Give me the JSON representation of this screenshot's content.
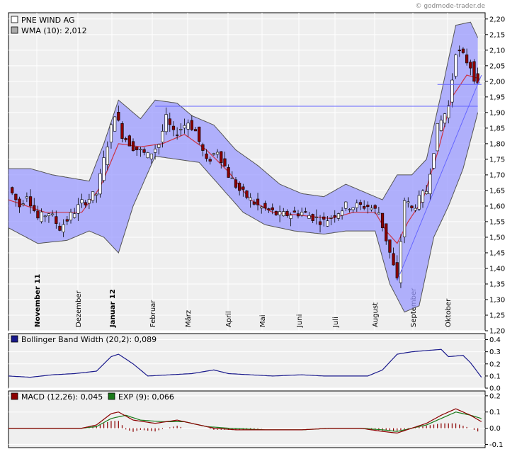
{
  "watermark": "© godmode-trader.de",
  "chart_data": [
    {
      "type": "candlestick",
      "legend": [
        {
          "label": "PNE WIND AG",
          "color": "#ffffff"
        },
        {
          "label": "WMA (10): 2,012",
          "color": "#aaaaaa"
        }
      ],
      "ylim": [
        1.2,
        2.22
      ],
      "y_ticks": [
        "1,20",
        "1,25",
        "1,30",
        "1,35",
        "1,40",
        "1,45",
        "1,50",
        "1,55",
        "1,60",
        "1,65",
        "1,70",
        "1,75",
        "1,80",
        "1,85",
        "1,90",
        "1,95",
        "2,00",
        "2,05",
        "2,10",
        "2,15",
        "2,20"
      ],
      "months": [
        "November 11",
        "Dezember",
        "Januar 12",
        "Februar",
        "März",
        "April",
        "Mai",
        "Juni",
        "Juli",
        "August",
        "September",
        "Oktober"
      ],
      "price_path": [
        [
          0,
          1.66
        ],
        [
          3,
          1.6
        ],
        [
          5,
          1.64
        ],
        [
          8,
          1.56
        ],
        [
          11,
          1.58
        ],
        [
          14,
          1.53
        ],
        [
          17,
          1.57
        ],
        [
          20,
          1.61
        ],
        [
          24,
          1.64
        ],
        [
          27,
          1.8
        ],
        [
          29,
          1.9
        ],
        [
          31,
          1.83
        ],
        [
          34,
          1.79
        ],
        [
          38,
          1.76
        ],
        [
          41,
          1.8
        ],
        [
          43,
          1.88
        ],
        [
          45,
          1.83
        ],
        [
          49,
          1.87
        ],
        [
          51,
          1.84
        ],
        [
          54,
          1.74
        ],
        [
          57,
          1.78
        ],
        [
          60,
          1.7
        ],
        [
          63,
          1.65
        ],
        [
          68,
          1.6
        ],
        [
          74,
          1.57
        ],
        [
          80,
          1.58
        ],
        [
          86,
          1.55
        ],
        [
          92,
          1.6
        ],
        [
          98,
          1.6
        ],
        [
          101,
          1.58
        ],
        [
          104,
          1.45
        ],
        [
          106,
          1.36
        ],
        [
          108,
          1.62
        ],
        [
          110,
          1.59
        ],
        [
          114,
          1.65
        ],
        [
          117,
          1.85
        ],
        [
          120,
          1.92
        ],
        [
          122,
          2.1
        ],
        [
          124,
          2.08
        ],
        [
          126,
          2.05
        ],
        [
          128,
          1.98
        ]
      ],
      "wma_path": [
        [
          0,
          1.62
        ],
        [
          10,
          1.58
        ],
        [
          20,
          1.58
        ],
        [
          25,
          1.66
        ],
        [
          30,
          1.8
        ],
        [
          36,
          1.79
        ],
        [
          42,
          1.8
        ],
        [
          48,
          1.83
        ],
        [
          54,
          1.78
        ],
        [
          60,
          1.71
        ],
        [
          66,
          1.62
        ],
        [
          72,
          1.58
        ],
        [
          80,
          1.57
        ],
        [
          88,
          1.56
        ],
        [
          94,
          1.58
        ],
        [
          100,
          1.58
        ],
        [
          103,
          1.52
        ],
        [
          106,
          1.48
        ],
        [
          109,
          1.55
        ],
        [
          113,
          1.62
        ],
        [
          117,
          1.77
        ],
        [
          121,
          1.95
        ],
        [
          125,
          2.02
        ],
        [
          128,
          2.01
        ]
      ],
      "bollinger_upper": [
        [
          0,
          1.72
        ],
        [
          6,
          1.72
        ],
        [
          12,
          1.7
        ],
        [
          22,
          1.68
        ],
        [
          26,
          1.8
        ],
        [
          30,
          1.94
        ],
        [
          36,
          1.88
        ],
        [
          40,
          1.94
        ],
        [
          46,
          1.93
        ],
        [
          50,
          1.89
        ],
        [
          56,
          1.86
        ],
        [
          62,
          1.78
        ],
        [
          68,
          1.73
        ],
        [
          74,
          1.67
        ],
        [
          80,
          1.64
        ],
        [
          86,
          1.63
        ],
        [
          92,
          1.67
        ],
        [
          98,
          1.64
        ],
        [
          102,
          1.62
        ],
        [
          106,
          1.7
        ],
        [
          110,
          1.7
        ],
        [
          114,
          1.75
        ],
        [
          118,
          1.96
        ],
        [
          122,
          2.18
        ],
        [
          126,
          2.19
        ],
        [
          128,
          2.14
        ]
      ],
      "bollinger_lower": [
        [
          0,
          1.53
        ],
        [
          8,
          1.48
        ],
        [
          16,
          1.49
        ],
        [
          22,
          1.52
        ],
        [
          26,
          1.5
        ],
        [
          30,
          1.45
        ],
        [
          34,
          1.6
        ],
        [
          40,
          1.76
        ],
        [
          46,
          1.75
        ],
        [
          52,
          1.74
        ],
        [
          58,
          1.66
        ],
        [
          64,
          1.58
        ],
        [
          70,
          1.54
        ],
        [
          78,
          1.52
        ],
        [
          86,
          1.51
        ],
        [
          92,
          1.52
        ],
        [
          100,
          1.52
        ],
        [
          104,
          1.35
        ],
        [
          108,
          1.26
        ],
        [
          112,
          1.28
        ],
        [
          116,
          1.5
        ],
        [
          120,
          1.6
        ],
        [
          124,
          1.72
        ],
        [
          128,
          1.9
        ]
      ],
      "resistance_line": [
        [
          40,
          1.92
        ],
        [
          128,
          1.92
        ]
      ],
      "support_line": [
        [
          106,
          1.36
        ],
        [
          129,
          2.02
        ]
      ],
      "short_line": [
        [
          117,
          1.99
        ],
        [
          129,
          1.99
        ]
      ]
    },
    {
      "type": "line",
      "legend": [
        {
          "label": "Bollinger Band Width (20,2): 0,089",
          "color": "#1a1a8c"
        }
      ],
      "ylim": [
        0.0,
        0.45
      ],
      "y_ticks": [
        "0.0",
        "0.1",
        "0.2",
        "0.3",
        "0.4"
      ],
      "series_path": [
        [
          0,
          0.1
        ],
        [
          6,
          0.09
        ],
        [
          12,
          0.11
        ],
        [
          18,
          0.12
        ],
        [
          24,
          0.14
        ],
        [
          28,
          0.26
        ],
        [
          30,
          0.28
        ],
        [
          34,
          0.2
        ],
        [
          38,
          0.1
        ],
        [
          44,
          0.11
        ],
        [
          50,
          0.12
        ],
        [
          56,
          0.15
        ],
        [
          60,
          0.12
        ],
        [
          66,
          0.11
        ],
        [
          72,
          0.1
        ],
        [
          80,
          0.11
        ],
        [
          86,
          0.1
        ],
        [
          92,
          0.1
        ],
        [
          98,
          0.1
        ],
        [
          102,
          0.15
        ],
        [
          106,
          0.28
        ],
        [
          110,
          0.3
        ],
        [
          114,
          0.31
        ],
        [
          118,
          0.32
        ],
        [
          120,
          0.26
        ],
        [
          124,
          0.27
        ],
        [
          126,
          0.21
        ],
        [
          129,
          0.09
        ]
      ]
    },
    {
      "type": "line",
      "legend": [
        {
          "label": "MACD (12,26): 0,045",
          "color": "#8b0000"
        },
        {
          "label": "EXP (9): 0,066",
          "color": "#1a7a1a"
        }
      ],
      "ylim": [
        -0.12,
        0.23
      ],
      "y_ticks": [
        "-0.1",
        "0.0",
        "0.1",
        "0.2"
      ],
      "macd_path": [
        [
          0,
          0.0
        ],
        [
          10,
          0.0
        ],
        [
          20,
          0.0
        ],
        [
          24,
          0.02
        ],
        [
          28,
          0.09
        ],
        [
          30,
          0.1
        ],
        [
          34,
          0.05
        ],
        [
          40,
          0.03
        ],
        [
          46,
          0.05
        ],
        [
          50,
          0.03
        ],
        [
          56,
          0.0
        ],
        [
          62,
          -0.01
        ],
        [
          70,
          -0.01
        ],
        [
          80,
          -0.01
        ],
        [
          88,
          0.0
        ],
        [
          96,
          0.0
        ],
        [
          102,
          -0.02
        ],
        [
          106,
          -0.03
        ],
        [
          110,
          0.0
        ],
        [
          114,
          0.03
        ],
        [
          118,
          0.08
        ],
        [
          122,
          0.12
        ],
        [
          126,
          0.08
        ],
        [
          129,
          0.04
        ]
      ],
      "exp_path": [
        [
          0,
          0.0
        ],
        [
          10,
          0.0
        ],
        [
          20,
          0.0
        ],
        [
          24,
          0.01
        ],
        [
          28,
          0.06
        ],
        [
          32,
          0.08
        ],
        [
          36,
          0.05
        ],
        [
          42,
          0.04
        ],
        [
          48,
          0.04
        ],
        [
          54,
          0.01
        ],
        [
          60,
          0.0
        ],
        [
          70,
          -0.01
        ],
        [
          80,
          -0.01
        ],
        [
          88,
          0.0
        ],
        [
          96,
          0.0
        ],
        [
          102,
          -0.01
        ],
        [
          106,
          -0.02
        ],
        [
          110,
          0.0
        ],
        [
          114,
          0.02
        ],
        [
          118,
          0.06
        ],
        [
          122,
          0.1
        ],
        [
          126,
          0.08
        ],
        [
          129,
          0.06
        ]
      ]
    }
  ],
  "colors": {
    "panel_bg": "#efefef",
    "grid": "#ffffff",
    "band_fill": "#9999ff",
    "band_edge": "#555555",
    "candle_up": "#ffffff",
    "candle_down": "#8b0000",
    "wma": "#cc3344",
    "trend": "#6666ff",
    "bbw": "#1a1a8c",
    "macd": "#8b0000",
    "exp": "#1a7a1a"
  }
}
